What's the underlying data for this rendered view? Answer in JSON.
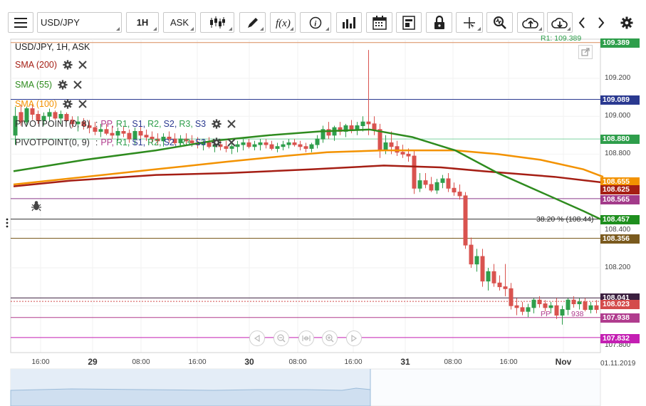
{
  "toolbar": {
    "symbol": "USD/JPY",
    "timeframe": "1H",
    "price_type": "ASK",
    "icons": [
      "menu-icon",
      "candlestick-icon",
      "draw-pen-icon",
      "function-icon",
      "info-icon",
      "bar-chart-icon",
      "calendar-icon",
      "template-icon",
      "lock-icon",
      "crosshair-icon",
      "zoom-icon",
      "cloud-upload-icon",
      "cloud-download-icon",
      "chevron-left-icon",
      "chevron-right-icon",
      "gear-icon"
    ]
  },
  "legend": {
    "title": "USD/JPY, 1H, ASK",
    "sma200": "SMA (200)",
    "sma55": "SMA (55)",
    "sma100": "SMA (100)",
    "pivot1": "PIVOTPOINT(0, 8)",
    "pivot2": "PIVOTPOINT(0, 9)",
    "pivot_colon": ":",
    "pp": "PP,",
    "r1": "R1,",
    "s1": "S1,",
    "r2": "R2,",
    "s2": "S2,",
    "r3": "R3,",
    "s3": "S3"
  },
  "annotations": {
    "r1_label": "R1: 109.389",
    "fib_label": "38.20 % (108.44)",
    "pp_label": "PP",
    "pp_value": "938"
  },
  "price_axis": {
    "ticks": [
      "109.200",
      "109.000",
      "108.800",
      "108.400",
      "108.200"
    ],
    "bottom_partial": "107.800",
    "labels": [
      {
        "text": "109.389",
        "color": "#2e9e4b"
      },
      {
        "text": "109.089",
        "color": "#2a3990"
      },
      {
        "text": "108.880",
        "color": "#2e9e4b"
      },
      {
        "text": "108.655",
        "color": "#f39200"
      },
      {
        "text": "108.625",
        "color": "#a51e14"
      },
      {
        "text": "108.565",
        "color": "#a33b8a"
      },
      {
        "text": "108.457",
        "color": "#1e8f1e"
      },
      {
        "text": "108.356",
        "color": "#7a5a1e"
      },
      {
        "text": "108.041",
        "color": "#3b1f3f"
      },
      {
        "text": "108.023",
        "color": "#d44c4c"
      },
      {
        "text": "107.938",
        "color": "#b03c8e"
      },
      {
        "text": "107.832",
        "color": "#c41fb3"
      }
    ]
  },
  "time_axis": {
    "labels": [
      "16:00",
      "29",
      "08:00",
      "16:00",
      "30",
      "08:00",
      "16:00",
      "31",
      "08:00",
      "16:00",
      "Nov"
    ],
    "date_stamp": "01.11.2019"
  },
  "colors": {
    "bull": "#2e9e4b",
    "bear": "#d9534f",
    "sma200": "#a51e14",
    "sma55": "#2e8b1e",
    "sma100": "#f39200"
  },
  "chart_data": {
    "type": "candlestick",
    "symbol": "USD/JPY",
    "timeframe": "1H",
    "price_range": [
      107.8,
      109.45
    ],
    "indicators": [
      {
        "name": "SMA (200)",
        "color": "#a51e14"
      },
      {
        "name": "SMA (55)",
        "color": "#2e8b1e"
      },
      {
        "name": "SMA (100)",
        "color": "#f39200"
      }
    ],
    "levels": [
      109.389,
      109.089,
      108.88,
      108.565,
      108.457,
      108.356,
      108.041,
      107.938,
      107.832
    ],
    "sma200": [
      [
        0,
        108.63
      ],
      [
        80,
        108.66
      ],
      [
        200,
        108.69
      ],
      [
        300,
        108.7
      ],
      [
        420,
        108.72
      ],
      [
        520,
        108.74
      ],
      [
        600,
        108.73
      ],
      [
        660,
        108.71
      ],
      [
        760,
        108.68
      ],
      [
        828,
        108.65
      ]
    ],
    "sma55": [
      [
        0,
        108.71
      ],
      [
        100,
        108.77
      ],
      [
        200,
        108.82
      ],
      [
        280,
        108.87
      ],
      [
        360,
        108.9
      ],
      [
        430,
        108.92
      ],
      [
        500,
        108.93
      ],
      [
        560,
        108.89
      ],
      [
        620,
        108.82
      ],
      [
        680,
        108.7
      ],
      [
        740,
        108.6
      ],
      [
        800,
        108.5
      ],
      [
        828,
        108.45
      ]
    ],
    "sma100": [
      [
        0,
        108.64
      ],
      [
        100,
        108.68
      ],
      [
        200,
        108.72
      ],
      [
        300,
        108.76
      ],
      [
        380,
        108.79
      ],
      [
        440,
        108.81
      ],
      [
        520,
        108.82
      ],
      [
        620,
        108.82
      ],
      [
        680,
        108.8
      ],
      [
        740,
        108.77
      ],
      [
        800,
        108.72
      ],
      [
        828,
        108.68
      ]
    ],
    "candles": [
      [
        0,
        108.9,
        109.05,
        108.85,
        109.0
      ],
      [
        8,
        109.02,
        109.06,
        108.95,
        108.97
      ],
      [
        16,
        108.97,
        109.05,
        108.95,
        109.04
      ],
      [
        24,
        109.04,
        109.06,
        108.98,
        109.01
      ],
      [
        32,
        109.01,
        109.03,
        108.96,
        108.98
      ],
      [
        40,
        108.98,
        109.02,
        108.95,
        109.0
      ],
      [
        48,
        109.0,
        109.04,
        108.97,
        109.02
      ],
      [
        56,
        109.02,
        109.03,
        108.98,
        108.99
      ],
      [
        64,
        108.99,
        109.03,
        108.96,
        109.01
      ],
      [
        72,
        109.01,
        109.02,
        108.97,
        108.98
      ],
      [
        80,
        108.98,
        109.0,
        108.94,
        108.96
      ],
      [
        88,
        108.96,
        109.0,
        108.92,
        108.97
      ],
      [
        96,
        108.97,
        108.99,
        108.93,
        108.95
      ],
      [
        104,
        108.95,
        108.98,
        108.91,
        108.94
      ],
      [
        112,
        108.94,
        108.97,
        108.9,
        108.92
      ],
      [
        120,
        108.92,
        108.96,
        108.89,
        108.93
      ],
      [
        128,
        108.93,
        108.96,
        108.9,
        108.91
      ],
      [
        136,
        108.91,
        108.95,
        108.88,
        108.9
      ],
      [
        144,
        108.9,
        108.94,
        108.87,
        108.92
      ],
      [
        152,
        108.92,
        108.95,
        108.89,
        108.91
      ],
      [
        160,
        108.91,
        108.93,
        108.86,
        108.88
      ],
      [
        168,
        108.88,
        108.94,
        108.85,
        108.92
      ],
      [
        176,
        108.92,
        108.95,
        108.88,
        108.9
      ],
      [
        184,
        108.9,
        108.93,
        108.87,
        108.89
      ],
      [
        192,
        108.89,
        108.92,
        108.86,
        108.88
      ],
      [
        200,
        108.88,
        108.91,
        108.85,
        108.87
      ],
      [
        208,
        108.87,
        108.91,
        108.84,
        108.89
      ],
      [
        216,
        108.89,
        108.92,
        108.86,
        108.88
      ],
      [
        224,
        108.88,
        108.91,
        108.85,
        108.86
      ],
      [
        232,
        108.86,
        108.9,
        108.84,
        108.88
      ],
      [
        240,
        108.88,
        108.91,
        108.85,
        108.87
      ],
      [
        248,
        108.87,
        108.9,
        108.84,
        108.86
      ],
      [
        256,
        108.86,
        108.89,
        108.83,
        108.85
      ],
      [
        264,
        108.85,
        108.88,
        108.82,
        108.86
      ],
      [
        272,
        108.86,
        108.89,
        108.83,
        108.84
      ],
      [
        280,
        108.84,
        108.87,
        108.81,
        108.85
      ],
      [
        288,
        108.85,
        108.88,
        108.82,
        108.84
      ],
      [
        296,
        108.84,
        108.87,
        108.81,
        108.83
      ],
      [
        304,
        108.83,
        108.86,
        108.8,
        108.84
      ],
      [
        312,
        108.84,
        108.87,
        108.81,
        108.85
      ],
      [
        320,
        108.85,
        108.88,
        108.82,
        108.86
      ],
      [
        328,
        108.86,
        108.88,
        108.83,
        108.84
      ],
      [
        336,
        108.84,
        108.87,
        108.82,
        108.85
      ],
      [
        344,
        108.85,
        108.88,
        108.82,
        108.86
      ],
      [
        352,
        108.86,
        108.88,
        108.83,
        108.85
      ],
      [
        360,
        108.85,
        108.87,
        108.82,
        108.83
      ],
      [
        368,
        108.83,
        108.86,
        108.81,
        108.84
      ],
      [
        376,
        108.84,
        108.87,
        108.82,
        108.85
      ],
      [
        384,
        108.85,
        108.88,
        108.83,
        108.86
      ],
      [
        392,
        108.86,
        108.88,
        108.84,
        108.85
      ],
      [
        400,
        108.85,
        108.87,
        108.82,
        108.84
      ],
      [
        408,
        108.84,
        108.86,
        108.81,
        108.83
      ],
      [
        416,
        108.83,
        108.86,
        108.81,
        108.85
      ],
      [
        424,
        108.85,
        108.9,
        108.83,
        108.88
      ],
      [
        432,
        108.88,
        108.95,
        108.86,
        108.93
      ],
      [
        440,
        108.93,
        108.97,
        108.88,
        108.9
      ],
      [
        448,
        108.9,
        108.95,
        108.87,
        108.94
      ],
      [
        456,
        108.94,
        108.97,
        108.9,
        108.92
      ],
      [
        464,
        108.92,
        108.96,
        108.89,
        108.95
      ],
      [
        472,
        108.95,
        108.98,
        108.91,
        108.93
      ],
      [
        480,
        108.93,
        108.97,
        108.9,
        108.95
      ],
      [
        488,
        108.95,
        109.0,
        108.92,
        108.97
      ],
      [
        496,
        108.97,
        109.35,
        108.9,
        108.96
      ],
      [
        504,
        108.96,
        109.0,
        108.9,
        108.93
      ],
      [
        512,
        108.93,
        108.96,
        108.78,
        108.82
      ],
      [
        520,
        108.82,
        108.9,
        108.8,
        108.86
      ],
      [
        528,
        108.86,
        108.92,
        108.8,
        108.84
      ],
      [
        536,
        108.84,
        108.87,
        108.79,
        108.81
      ],
      [
        544,
        108.81,
        108.85,
        108.78,
        108.8
      ],
      [
        552,
        108.8,
        108.83,
        108.76,
        108.79
      ],
      [
        560,
        108.79,
        108.82,
        108.59,
        108.62
      ],
      [
        568,
        108.62,
        108.7,
        108.6,
        108.66
      ],
      [
        576,
        108.66,
        108.7,
        108.62,
        108.64
      ],
      [
        584,
        108.64,
        108.68,
        108.6,
        108.61
      ],
      [
        592,
        108.61,
        108.67,
        108.59,
        108.65
      ],
      [
        600,
        108.65,
        108.69,
        108.62,
        108.67
      ],
      [
        608,
        108.67,
        108.7,
        108.6,
        108.62
      ],
      [
        616,
        108.62,
        108.65,
        108.58,
        108.6
      ],
      [
        624,
        108.6,
        108.64,
        108.56,
        108.58
      ],
      [
        632,
        108.58,
        108.6,
        108.3,
        108.32
      ],
      [
        640,
        108.32,
        108.36,
        108.2,
        108.22
      ],
      [
        648,
        108.22,
        108.3,
        108.18,
        108.26
      ],
      [
        656,
        108.26,
        108.3,
        108.1,
        108.13
      ],
      [
        664,
        108.13,
        108.2,
        108.08,
        108.18
      ],
      [
        672,
        108.18,
        108.22,
        108.1,
        108.12
      ],
      [
        680,
        108.12,
        108.16,
        108.08,
        108.1
      ],
      [
        688,
        108.1,
        108.22,
        108.05,
        108.09
      ],
      [
        696,
        108.09,
        108.12,
        107.98,
        108.0
      ],
      [
        704,
        108.0,
        108.04,
        107.95,
        107.99
      ],
      [
        712,
        107.99,
        108.02,
        107.95,
        107.97
      ],
      [
        720,
        107.97,
        108.01,
        107.94,
        107.99
      ],
      [
        728,
        107.99,
        108.04,
        107.96,
        108.03
      ],
      [
        736,
        108.03,
        108.05,
        107.99,
        108.01
      ],
      [
        744,
        108.01,
        108.03,
        107.97,
        107.99
      ],
      [
        752,
        107.99,
        108.02,
        107.96,
        108.0
      ],
      [
        760,
        108.0,
        108.04,
        107.93,
        107.95
      ],
      [
        768,
        107.95,
        108.0,
        107.9,
        107.98
      ],
      [
        776,
        107.98,
        108.04,
        107.95,
        108.03
      ],
      [
        784,
        108.03,
        108.05,
        107.99,
        108.01
      ],
      [
        792,
        108.01,
        108.04,
        107.98,
        108.02
      ],
      [
        800,
        108.02,
        108.04,
        107.97,
        107.98
      ],
      [
        808,
        107.98,
        108.02,
        107.96,
        108.0
      ],
      [
        816,
        108.0,
        108.03,
        107.96,
        107.98
      ]
    ]
  }
}
